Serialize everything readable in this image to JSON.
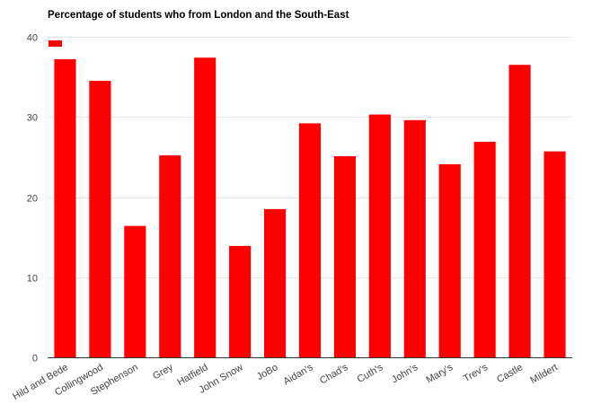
{
  "chart_data": {
    "type": "bar",
    "title": "Percentage of students who from London and the South-East",
    "xlabel": "",
    "ylabel": "",
    "categories": [
      "Hild and Bede",
      "Collingwood",
      "Stephenson",
      "Grey",
      "Hatfield",
      "John Snow",
      "JoBo",
      "Aidan's",
      "Chad's",
      "Cuth's",
      "John's",
      "Mary's",
      "Trev's",
      "Castle",
      "Mildert"
    ],
    "series": [
      {
        "values": [
          37.2,
          34.5,
          16.4,
          25.2,
          37.4,
          13.9,
          18.5,
          29.2,
          25.1,
          30.3,
          29.6,
          24.1,
          26.9,
          36.5,
          25.7
        ]
      }
    ],
    "yticks": [
      0,
      10,
      20,
      30,
      40
    ],
    "ylim": [
      0,
      40
    ],
    "grid": true,
    "legend": "top-left",
    "color": "#ff0000"
  }
}
